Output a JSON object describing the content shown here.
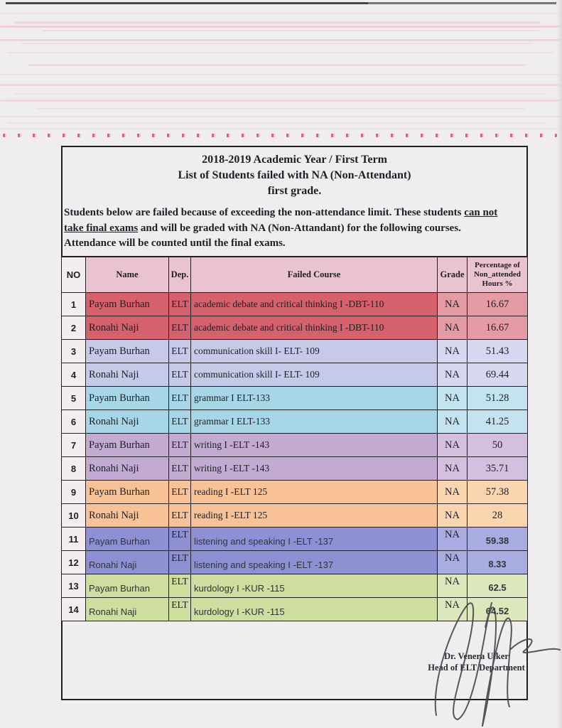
{
  "doc": {
    "title_line1": "2018-2019 Academic Year / First Term",
    "title_line2": "List of Students failed with NA (Non-Attendant)",
    "title_line3": "first grade.",
    "intro_lines": [
      {
        "segments": [
          {
            "text": "Students below are failed because of exceeding the non-attendance limit. These students ",
            "underline": false
          },
          {
            "text": "can not",
            "underline": true
          }
        ]
      },
      {
        "segments": [
          {
            "text": "take final exams",
            "underline": true
          },
          {
            "text": " and will be graded with NA (Non-Attandant) for the following courses.",
            "underline": false
          }
        ]
      },
      {
        "segments": [
          {
            "text": "Attendance will be counted until the final exams.",
            "underline": false
          }
        ]
      }
    ]
  },
  "table": {
    "headers": {
      "no": "NO",
      "name": "Name",
      "dep": "Dep.",
      "course": "Failed Course",
      "grade": "Grade",
      "pct": "Percentage of\nNon_attended\nHours %"
    },
    "rows": [
      {
        "no": "1",
        "name": "Payam Burhan",
        "dep": "ELT",
        "course": "academic debate and critical thinking I -DBT-110",
        "grade": "NA",
        "pct": "16.67",
        "group": "red",
        "font": "serif"
      },
      {
        "no": "2",
        "name": "Ronahi Naji",
        "dep": "ELT",
        "course": "academic debate and critical thinking I -DBT-110",
        "grade": "NA",
        "pct": "16.67",
        "group": "red",
        "font": "serif"
      },
      {
        "no": "3",
        "name": "Payam Burhan",
        "dep": "ELT",
        "course": "communication skill I- ELT- 109",
        "grade": "NA",
        "pct": "51.43",
        "group": "lavender",
        "font": "serif"
      },
      {
        "no": "4",
        "name": "Ronahi Naji",
        "dep": "ELT",
        "course": "communication skill I- ELT- 109",
        "grade": "NA",
        "pct": "69.44",
        "group": "lavender",
        "font": "serif"
      },
      {
        "no": "5",
        "name": "Payam Burhan",
        "dep": "ELT",
        "course": "grammar I ELT-133",
        "grade": "NA",
        "pct": "51.28",
        "group": "cyan",
        "font": "serif"
      },
      {
        "no": "6",
        "name": "Ronahi Naji",
        "dep": "ELT",
        "course": "grammar I ELT-133",
        "grade": "NA",
        "pct": "41.25",
        "group": "cyan",
        "font": "serif"
      },
      {
        "no": "7",
        "name": "Payam Burhan",
        "dep": "ELT",
        "course": "writing I -ELT -143",
        "grade": "NA",
        "pct": "50",
        "group": "mauve",
        "font": "serif"
      },
      {
        "no": "8",
        "name": "Ronahi Naji",
        "dep": "ELT",
        "course": "writing I -ELT -143",
        "grade": "NA",
        "pct": "35.71",
        "group": "mauve",
        "font": "serif"
      },
      {
        "no": "9",
        "name": "Payam Burhan",
        "dep": "ELT",
        "course": "reading I -ELT 125",
        "grade": "NA",
        "pct": "57.38",
        "group": "peach",
        "font": "serif"
      },
      {
        "no": "10",
        "name": "Ronahi Naji",
        "dep": "ELT",
        "course": "reading I -ELT 125",
        "grade": "NA",
        "pct": "28",
        "group": "peach",
        "font": "serif"
      },
      {
        "no": "11",
        "name": "Payam Burhan",
        "dep": "ELT",
        "course": "listening and speaking I -ELT -137",
        "grade": "NA",
        "pct": "59.38",
        "group": "periwinkle",
        "font": "sans"
      },
      {
        "no": "12",
        "name": "Ronahi Naji",
        "dep": "ELT",
        "course": "listening and speaking I -ELT -137",
        "grade": "NA",
        "pct": "8.33",
        "group": "periwinkle",
        "font": "sans"
      },
      {
        "no": "13",
        "name": "Payam Burhan",
        "dep": "ELT",
        "course": "kurdology I -KUR -115",
        "grade": "NA",
        "pct": "62.5",
        "group": "green",
        "font": "sans"
      },
      {
        "no": "14",
        "name": "Ronahi Naji",
        "dep": "ELT",
        "course": "kurdology I -KUR -115",
        "grade": "NA",
        "pct": "64.52",
        "group": "green",
        "font": "sans"
      }
    ]
  },
  "signature": {
    "line1": "Dr. Venera Ulker",
    "line2": "Head of ELT Department"
  },
  "colors": {
    "paper": "#f0edee",
    "ink": "#1e1e26",
    "border": "#1f1f24",
    "header_pink": "#e9c4d0",
    "header_no_bg": "#f4edef",
    "no_col_bg": "#f3edef",
    "red_dots": "#d9486a",
    "streak_pink": "#e78ba4",
    "groups": {
      "red": {
        "main": "#d4616b",
        "light": "#e49ba3"
      },
      "lavender": {
        "main": "#c6c9e8",
        "light": "#d6d8f1"
      },
      "cyan": {
        "main": "#a7d7e7",
        "light": "#c3e4ee"
      },
      "mauve": {
        "main": "#c3aad1",
        "light": "#d4c0de"
      },
      "peach": {
        "main": "#f6c296",
        "light": "#f9d5b0"
      },
      "periwinkle": {
        "main": "#8d90d3",
        "light": "#a9ace1"
      },
      "green": {
        "main": "#cdde9f",
        "light": "#dce8bb"
      }
    }
  }
}
